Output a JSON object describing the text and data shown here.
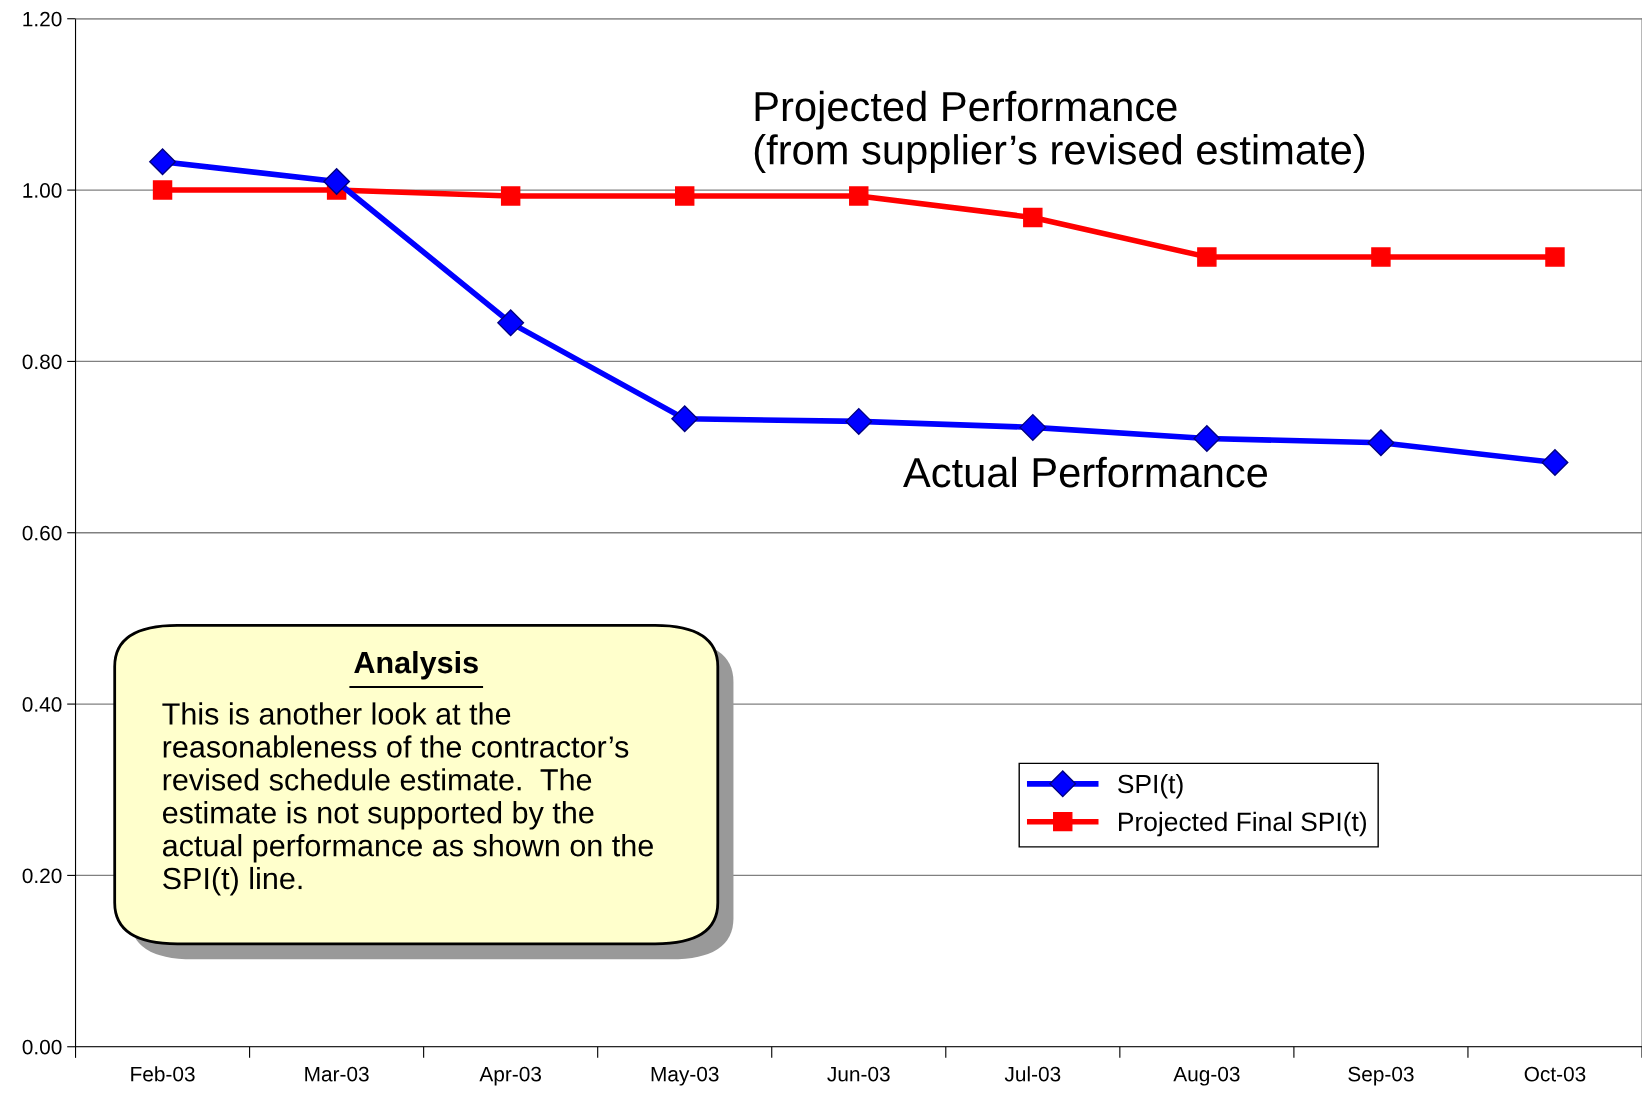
{
  "chart_data": {
    "type": "line",
    "categories": [
      "Feb-03",
      "Mar-03",
      "Apr-03",
      "May-03",
      "Jun-03",
      "Jul-03",
      "Aug-03",
      "Sep-03",
      "Oct-03"
    ],
    "series": [
      {
        "name": "SPI(t)",
        "color": "#0000ff",
        "marker": "diamond",
        "values": [
          1.033,
          1.01,
          0.845,
          0.733,
          0.73,
          0.723,
          0.71,
          0.705,
          0.682
        ]
      },
      {
        "name": "Projected Final SPI(t)",
        "color": "#ff0000",
        "marker": "square",
        "values": [
          1.0,
          1.0,
          0.993,
          0.993,
          0.993,
          0.968,
          0.922,
          0.922,
          0.922
        ]
      }
    ],
    "ylim": [
      0,
      1.2
    ],
    "yticks": [
      {
        "value": 0,
        "label": "0.00"
      },
      {
        "value": 0.2,
        "label": "0.20"
      },
      {
        "value": 0.4,
        "label": "0.40"
      },
      {
        "value": 0.6,
        "label": "0.60"
      },
      {
        "value": 0.8,
        "label": "0.80"
      },
      {
        "value": 1.0,
        "label": "1.00"
      },
      {
        "value": 1.2,
        "label": "1.20"
      }
    ],
    "grid": "y",
    "legend": "bottom right",
    "line_style": "solid",
    "annotations": [
      "Projected Performance\n(from supplier’s revised estimate)",
      "Actual Performance",
      "Analysis",
      "This is another look at the\nreasonableness of the contractor’s\nrevised schedule estimate.  The\nestimate is not supported by the\nactual performance as shown on the\nSPI(t) line."
    ]
  }
}
